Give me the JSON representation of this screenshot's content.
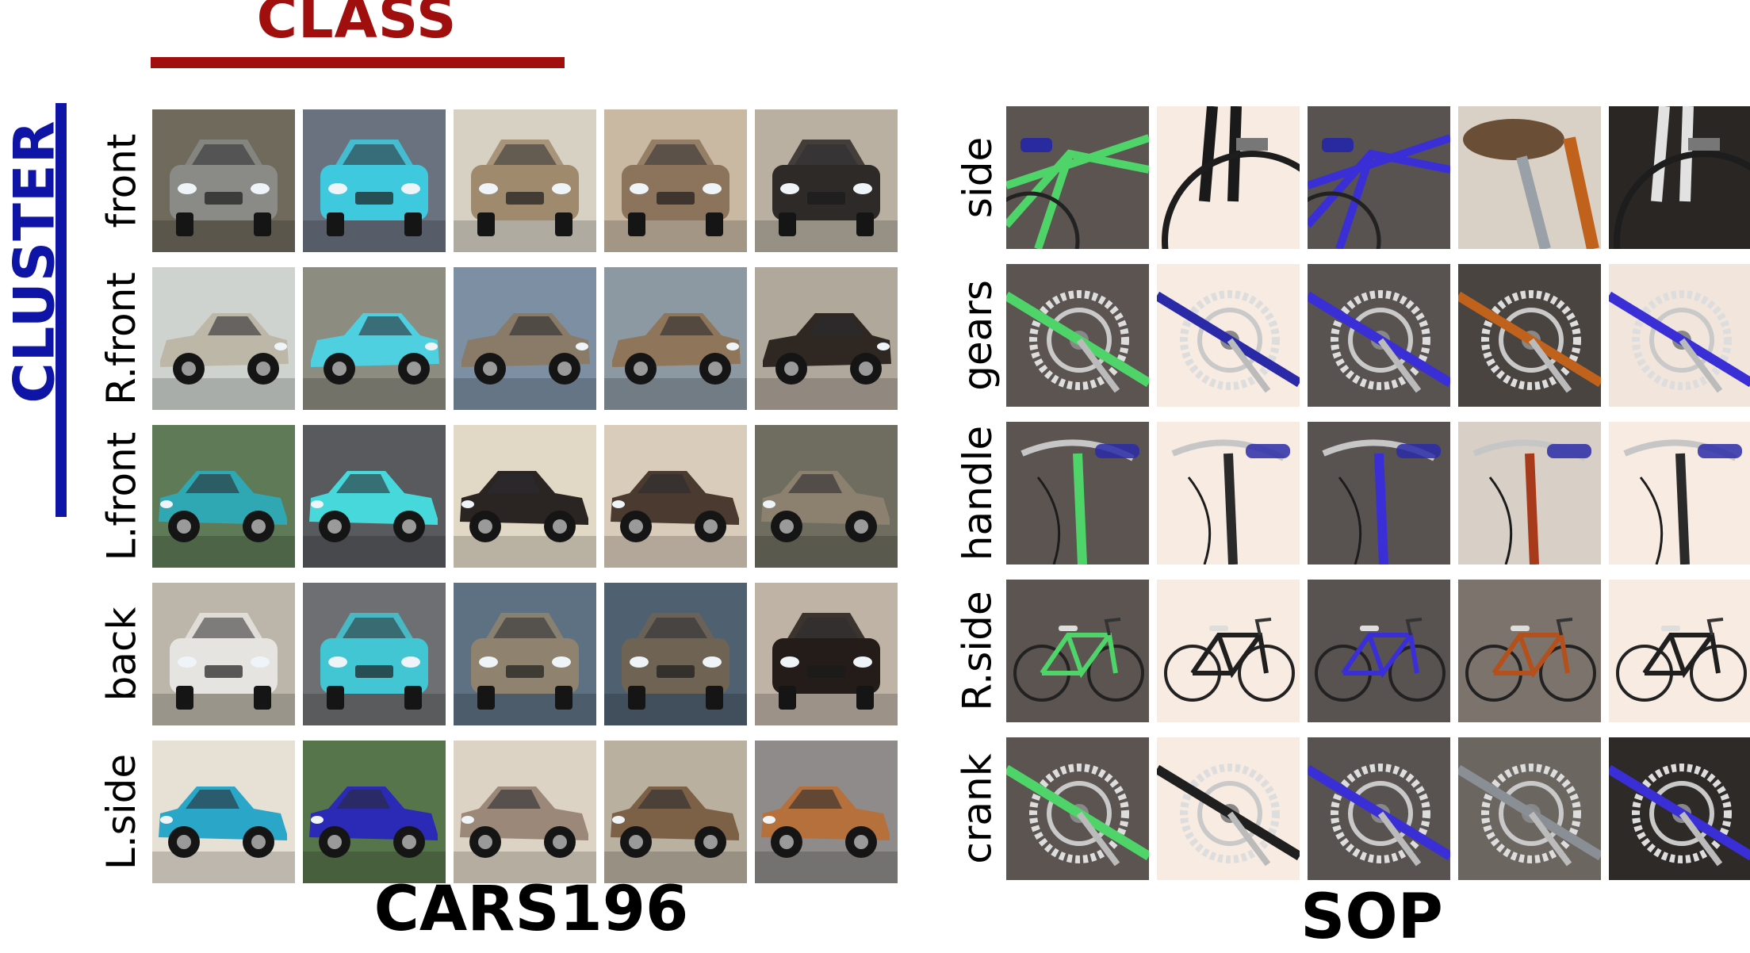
{
  "headers": {
    "class_label": "CLASS",
    "cluster_label": "CLUSTER",
    "class_color": "#a10e0e",
    "cluster_color": "#0d14a6"
  },
  "panels": [
    {
      "title": "CARS196",
      "rows": [
        {
          "label": "front",
          "cells": [
            {
              "kind": "car",
              "view": "front",
              "color": "#8a8a86",
              "bg": "#6f6a5c"
            },
            {
              "kind": "car",
              "view": "front",
              "color": "#3ec9de",
              "bg": "#6a7280"
            },
            {
              "kind": "car",
              "view": "front",
              "color": "#a08a6e",
              "bg": "#d7d1c4"
            },
            {
              "kind": "car",
              "view": "front",
              "color": "#8c735c",
              "bg": "#c9b8a2"
            },
            {
              "kind": "car",
              "view": "front",
              "color": "#2e2a28",
              "bg": "#b9b0a2"
            }
          ]
        },
        {
          "label": "R.front",
          "cells": [
            {
              "kind": "car",
              "view": "side-r",
              "color": "#bdb7a8",
              "bg": "#cfd3d0"
            },
            {
              "kind": "car",
              "view": "side-r",
              "color": "#4fd0e0",
              "bg": "#8d8c80"
            },
            {
              "kind": "car",
              "view": "side-r",
              "color": "#8a7a68",
              "bg": "#7c8fa3"
            },
            {
              "kind": "car",
              "view": "side-r",
              "color": "#8f7559",
              "bg": "#8c98a2"
            },
            {
              "kind": "car",
              "view": "side-r",
              "color": "#2e2722",
              "bg": "#b1a89c"
            }
          ]
        },
        {
          "label": "L.front",
          "cells": [
            {
              "kind": "car",
              "view": "side-l",
              "color": "#2fa8b4",
              "bg": "#5f7a56"
            },
            {
              "kind": "car",
              "view": "side-l",
              "color": "#47d8dc",
              "bg": "#585a5e"
            },
            {
              "kind": "car",
              "view": "side-l",
              "color": "#2a2422",
              "bg": "#e2d8c6"
            },
            {
              "kind": "car",
              "view": "side-l",
              "color": "#4a3a30",
              "bg": "#d9ccba"
            },
            {
              "kind": "car",
              "view": "side-l",
              "color": "#8c806e",
              "bg": "#6e6d5f"
            }
          ]
        },
        {
          "label": "back",
          "cells": [
            {
              "kind": "car",
              "view": "back",
              "color": "#e6e4e0",
              "bg": "#bcb6aa"
            },
            {
              "kind": "car",
              "view": "back",
              "color": "#43c6d4",
              "bg": "#6d6f72"
            },
            {
              "kind": "car",
              "view": "back",
              "color": "#8f826e",
              "bg": "#5d7183"
            },
            {
              "kind": "car",
              "view": "back",
              "color": "#6f6354",
              "bg": "#4f6170"
            },
            {
              "kind": "car",
              "view": "back",
              "color": "#231c18",
              "bg": "#bfb3a5"
            }
          ]
        },
        {
          "label": "L.side",
          "cells": [
            {
              "kind": "car",
              "view": "side-l",
              "color": "#2aa6c9",
              "bg": "#e7e0d4"
            },
            {
              "kind": "car",
              "view": "side-l",
              "color": "#2a2ab6",
              "bg": "#57754a"
            },
            {
              "kind": "car",
              "view": "side-l",
              "color": "#9b8878",
              "bg": "#dcd3c4"
            },
            {
              "kind": "car",
              "view": "side-l",
              "color": "#7c6146",
              "bg": "#b9b0a0"
            },
            {
              "kind": "car",
              "view": "side-l",
              "color": "#b6703c",
              "bg": "#8e8b8a"
            }
          ]
        }
      ]
    },
    {
      "title": "SOP",
      "rows": [
        {
          "label": "side",
          "cells": [
            {
              "kind": "bike",
              "view": "frame",
              "color": "#4fd46a",
              "bg": "#5b5450"
            },
            {
              "kind": "bike",
              "view": "fork",
              "color": "#1a1a1a",
              "bg": "#f7ebe2"
            },
            {
              "kind": "bike",
              "view": "frame",
              "color": "#3a2fd6",
              "bg": "#585250"
            },
            {
              "kind": "bike",
              "view": "seat",
              "color": "#9a9fa6",
              "bg": "#d9d0c6"
            },
            {
              "kind": "bike",
              "view": "fork",
              "color": "#e2e2e2",
              "bg": "#2a2624"
            }
          ]
        },
        {
          "label": "gears",
          "cells": [
            {
              "kind": "bike",
              "view": "gear",
              "color": "#4fd46a",
              "bg": "#5b5450"
            },
            {
              "kind": "bike",
              "view": "gear",
              "color": "#2a2aa8",
              "bg": "#f7ebe2"
            },
            {
              "kind": "bike",
              "view": "gear",
              "color": "#3a2fd6",
              "bg": "#585250"
            },
            {
              "kind": "bike",
              "view": "gear",
              "color": "#c0621c",
              "bg": "#4a4440"
            },
            {
              "kind": "bike",
              "view": "gear",
              "color": "#3a2fd6",
              "bg": "#f2e6dc"
            }
          ]
        },
        {
          "label": "handle",
          "cells": [
            {
              "kind": "bike",
              "view": "handle",
              "color": "#4fd46a",
              "bg": "#5b5450"
            },
            {
              "kind": "bike",
              "view": "handle",
              "color": "#2a2a2a",
              "bg": "#f7ebe2"
            },
            {
              "kind": "bike",
              "view": "handle",
              "color": "#3a2fd6",
              "bg": "#585250"
            },
            {
              "kind": "bike",
              "view": "handle",
              "color": "#a83a1c",
              "bg": "#d8d0c6"
            },
            {
              "kind": "bike",
              "view": "handle",
              "color": "#2a2a2a",
              "bg": "#f7ebe2"
            }
          ]
        },
        {
          "label": "R.side",
          "cells": [
            {
              "kind": "bike",
              "view": "full",
              "color": "#4fd46a",
              "bg": "#5b5450"
            },
            {
              "kind": "bike",
              "view": "full",
              "color": "#1f1f1f",
              "bg": "#f7ebe2"
            },
            {
              "kind": "bike",
              "view": "full",
              "color": "#3a2fd6",
              "bg": "#585250"
            },
            {
              "kind": "bike",
              "view": "full",
              "color": "#b3501c",
              "bg": "#7c746c"
            },
            {
              "kind": "bike",
              "view": "full",
              "color": "#1f1f1f",
              "bg": "#f7ebe2"
            }
          ]
        },
        {
          "label": "crank",
          "cells": [
            {
              "kind": "bike",
              "view": "crank",
              "color": "#4fd46a",
              "bg": "#5b5450"
            },
            {
              "kind": "bike",
              "view": "crank",
              "color": "#1f1f1f",
              "bg": "#f7ebe2"
            },
            {
              "kind": "bike",
              "view": "crank",
              "color": "#3a2fd6",
              "bg": "#585250"
            },
            {
              "kind": "bike",
              "view": "crank",
              "color": "#8a8f95",
              "bg": "#6c6660"
            },
            {
              "kind": "bike",
              "view": "crank",
              "color": "#3a2fd6",
              "bg": "#2e2a28"
            }
          ]
        }
      ]
    }
  ]
}
